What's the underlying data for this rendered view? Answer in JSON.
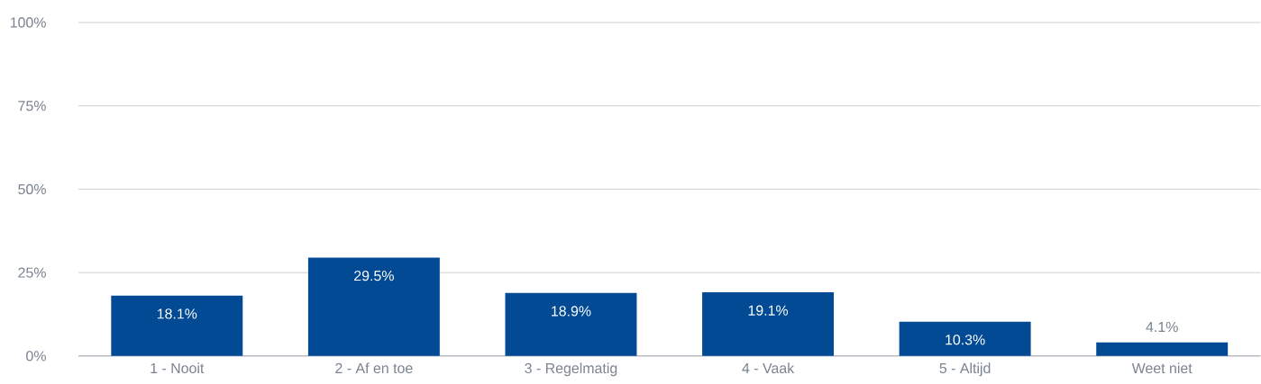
{
  "chart_data": {
    "type": "bar",
    "categories": [
      "1 - Nooit",
      "2 - Af en toe",
      "3 - Regelmatig",
      "4 - Vaak",
      "5 - Altijd",
      "Weet niet"
    ],
    "values": [
      18.1,
      29.5,
      18.9,
      19.1,
      10.3,
      4.1
    ],
    "value_labels": [
      "18.1%",
      "29.5%",
      "18.9%",
      "19.1%",
      "10.3%",
      "4.1%"
    ],
    "color": "#024a93",
    "ylim": [
      0,
      100
    ],
    "yticks": [
      {
        "value": 0,
        "label": "0%"
      },
      {
        "value": 25,
        "label": "25%"
      },
      {
        "value": 50,
        "label": "50%"
      },
      {
        "value": 75,
        "label": "75%"
      },
      {
        "value": 100,
        "label": "100%"
      }
    ],
    "grid": "y"
  }
}
